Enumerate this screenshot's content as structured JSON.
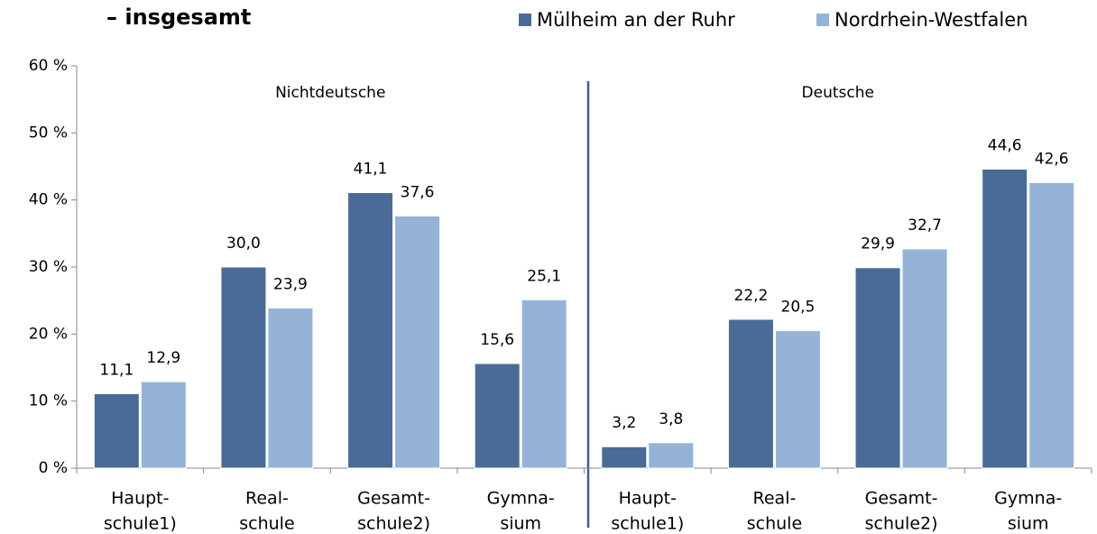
{
  "chart_data": {
    "type": "bar",
    "title": "– insgesamt",
    "annotations": [
      "Nichtdeutsche",
      "Deutsche"
    ],
    "categories": [
      [
        "Haupt-",
        "schule1)"
      ],
      [
        "Real-",
        "schule"
      ],
      [
        "Gesamt-",
        "schule2)"
      ],
      [
        "Gymna-",
        "sium"
      ],
      [
        "Haupt-",
        "schule1)"
      ],
      [
        "Real-",
        "schule"
      ],
      [
        "Gesamt-",
        "schule2)"
      ],
      [
        "Gymna-",
        "sium"
      ]
    ],
    "series": [
      {
        "name": "Mülheim an der Ruhr",
        "color": "#4a6b96",
        "values": [
          11.1,
          30.0,
          41.1,
          15.6,
          3.2,
          22.2,
          29.9,
          44.6
        ],
        "value_labels": [
          "11,1",
          "30,0",
          "41,1",
          "15,6",
          "3,2",
          "22,2",
          "29,9",
          "44,6"
        ]
      },
      {
        "name": "Nordrhein-Westfalen",
        "color": "#95b3d7",
        "values": [
          12.9,
          23.9,
          37.6,
          25.1,
          3.8,
          20.5,
          32.7,
          42.6
        ],
        "value_labels": [
          "12,9",
          "23,9",
          "37,6",
          "25,1",
          "3,8",
          "20,5",
          "32,7",
          "42,6"
        ]
      }
    ],
    "ylim": [
      0,
      60
    ],
    "yticks": [
      {
        "value": 0,
        "label": "0 %"
      },
      {
        "value": 10,
        "label": "10 %"
      },
      {
        "value": 20,
        "label": "20 %"
      },
      {
        "value": 30,
        "label": "30 %"
      },
      {
        "value": 40,
        "label": "40 %"
      },
      {
        "value": 50,
        "label": "50 %"
      },
      {
        "value": 60,
        "label": "60 %"
      }
    ],
    "grid": false,
    "legend": "top"
  }
}
